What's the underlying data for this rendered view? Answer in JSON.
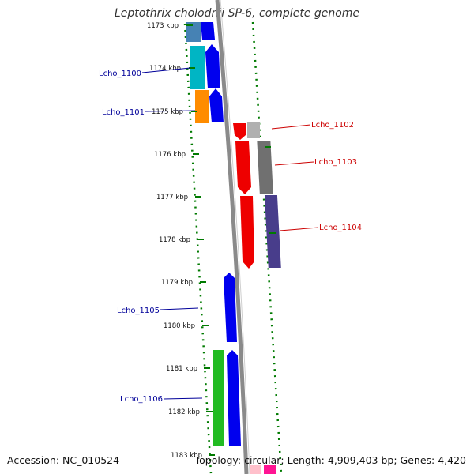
{
  "title": "Leptothrix cholodnii SP-6, complete genome",
  "footer": {
    "accession": "Accession: NC_010524",
    "summary": "Topology: circular; Length: 4,909,403 bp; Genes: 4,420"
  },
  "ticks": [
    "1173 kbp",
    "1174 kbp",
    "1175 kbp",
    "1176 kbp",
    "1177 kbp",
    "1178 kbp",
    "1179 kbp",
    "1180 kbp",
    "1181 kbp",
    "1182 kbp",
    "1183 kbp"
  ],
  "gene_labels": {
    "left": [
      "Lcho_1100",
      "Lcho_1101",
      "Lcho_1105",
      "Lcho_1106"
    ],
    "right": [
      "Lcho_1102",
      "Lcho_1103",
      "Lcho_1104"
    ]
  },
  "colors": {
    "forward_gene": "#0000ee",
    "reverse_gene": "#ee0000",
    "backbone": "#8a8a8a",
    "tick_marks": "#007a00",
    "left_label": "#000099",
    "right_label": "#cc0000"
  }
}
